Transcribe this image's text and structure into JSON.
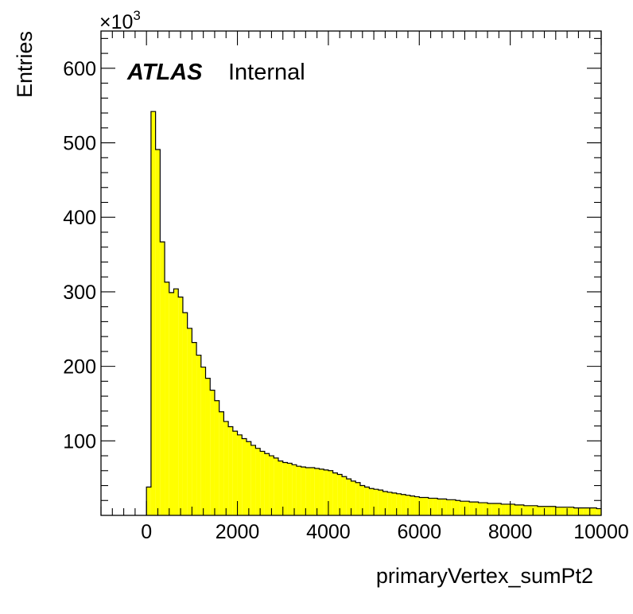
{
  "chart_data": {
    "type": "bar",
    "style": "histogram",
    "xlabel": "primaryVertex_sumPt2",
    "ylabel": "Entries",
    "y_multiplier_label": "×10",
    "y_multiplier_exponent": "3",
    "xlim": [
      -1000,
      10000
    ],
    "ylim": [
      0,
      650
    ],
    "x_ticks": [
      0,
      2000,
      4000,
      6000,
      8000,
      10000
    ],
    "y_ticks": [
      100,
      200,
      300,
      400,
      500,
      600
    ],
    "grid": false,
    "fill_color": "#ffff00",
    "line_color": "#000000",
    "bin_width": 100,
    "x_start": 0,
    "values": [
      38,
      542,
      491,
      367,
      313,
      299,
      304,
      293,
      272,
      251,
      232,
      215,
      199,
      184,
      168,
      154,
      139,
      126,
      119,
      113,
      108,
      103,
      99,
      94,
      90,
      86,
      83,
      80,
      77,
      73,
      71,
      70,
      68,
      66,
      65,
      64,
      64,
      63,
      62,
      61,
      60,
      57,
      55,
      52,
      49,
      46,
      44,
      40,
      38,
      36,
      35,
      34,
      32,
      31,
      30,
      29,
      28,
      27,
      26,
      25,
      24,
      24,
      23,
      23,
      22,
      22,
      21,
      21,
      20,
      19,
      19,
      18,
      18,
      17,
      17,
      16,
      16,
      16,
      15,
      15,
      15,
      14,
      14,
      13,
      13,
      13,
      12,
      12,
      12,
      12,
      11,
      11,
      11,
      11,
      10,
      10,
      10,
      10,
      10,
      9
    ]
  },
  "annotation": {
    "atlas": "ATLAS",
    "internal": "Internal"
  }
}
